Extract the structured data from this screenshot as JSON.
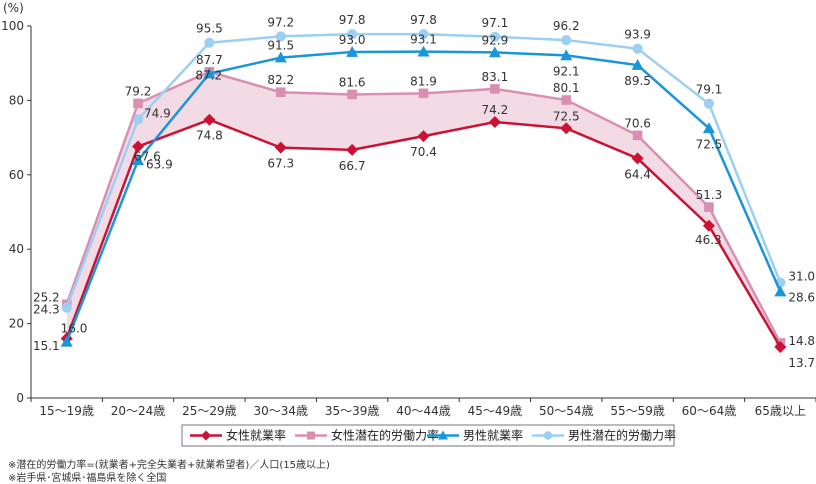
{
  "chart_data": {
    "type": "line",
    "title": "",
    "xlabel": "",
    "ylabel": "(%)",
    "ylim": [
      0,
      100
    ],
    "yticks": [
      0,
      20,
      40,
      60,
      80,
      100
    ],
    "grid": false,
    "legend_position": "bottom",
    "categories": [
      "15～19歳",
      "20～24歳",
      "25～29歳",
      "30～34歳",
      "35～39歳",
      "40～44歳",
      "45～49歳",
      "50～54歳",
      "55～59歳",
      "60～64歳",
      "65歳以上"
    ],
    "series": [
      {
        "name": "女性就業率",
        "color": "#cc1133",
        "marker": "diamond",
        "values": [
          16.0,
          67.6,
          74.8,
          67.3,
          66.7,
          70.4,
          74.2,
          72.5,
          64.4,
          46.3,
          13.7
        ],
        "labels": [
          "16.0",
          "67.6",
          "74.8",
          "67.3",
          "66.7",
          "70.4",
          "74.2",
          "72.5",
          "64.4",
          "46.3",
          "13.7"
        ]
      },
      {
        "name": "女性潜在的労働力率",
        "color": "#d98fb2",
        "marker": "square",
        "values": [
          25.2,
          79.2,
          87.7,
          82.2,
          81.6,
          81.9,
          83.1,
          80.1,
          70.6,
          51.3,
          14.8
        ],
        "labels": [
          "25.2",
          "79.2",
          "87.7",
          "82.2",
          "81.6",
          "81.9",
          "83.1",
          "80.1",
          "70.6",
          "51.3",
          "14.8"
        ]
      },
      {
        "name": "男性就業率",
        "color": "#1a96d8",
        "marker": "triangle",
        "values": [
          15.1,
          63.9,
          87.2,
          91.5,
          93.0,
          93.1,
          92.9,
          92.1,
          89.5,
          72.5,
          28.6
        ],
        "labels": [
          "15.1",
          "63.9",
          "87.2",
          "91.5",
          "93.0",
          "93.1",
          "92.9",
          "92.1",
          "89.5",
          "72.5",
          "28.6"
        ]
      },
      {
        "name": "男性潜在的労働力率",
        "color": "#9dcff0",
        "marker": "circle",
        "values": [
          24.3,
          74.9,
          95.5,
          97.2,
          97.8,
          97.8,
          97.1,
          96.2,
          93.9,
          79.1,
          31.0
        ],
        "labels": [
          "24.3",
          "74.9",
          "95.5",
          "97.2",
          "97.8",
          "97.8",
          "97.1",
          "96.2",
          "93.9",
          "79.1",
          "31.0"
        ]
      }
    ],
    "shaded_area": {
      "between": [
        "女性就業率",
        "女性潜在的労働力率"
      ],
      "color": "#f3dbe6"
    }
  },
  "notes": [
    "※潜在的労働力率=(就業者+完全失業者+就業希望者)／人口(15歳以上)",
    "※岩手県･宮城県･福島県を除く全国"
  ]
}
